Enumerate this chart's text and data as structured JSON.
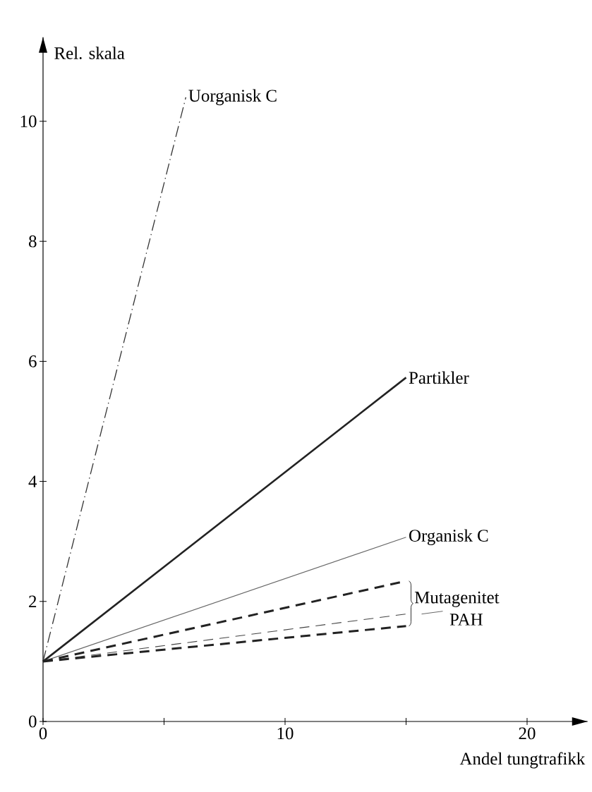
{
  "chart_data": {
    "type": "line",
    "xlabel": "Andel tungtrafikk",
    "ylabel": "Rel. skala",
    "xlim": [
      0,
      22.5
    ],
    "ylim": [
      0,
      11.4
    ],
    "xticks": [
      0,
      {
        "value": 5,
        "label": null
      },
      10,
      {
        "value": 15,
        "label": null
      },
      20
    ],
    "yticks": [
      0,
      2,
      4,
      6,
      8,
      10
    ],
    "grid": false,
    "legend": false,
    "marker": "none",
    "series": [
      {
        "name": "Uorganisk C",
        "color": "#333333",
        "line_style": "dashdot",
        "x": [
          0,
          5.9
        ],
        "values": [
          1,
          10.4
        ]
      },
      {
        "name": "Partikler",
        "color": "#222222",
        "line_style": "solid",
        "x": [
          0,
          15
        ],
        "values": [
          1,
          5.73
        ]
      },
      {
        "name": "Organisk C",
        "color": "#666666",
        "line_style": "solid",
        "x": [
          0,
          15
        ],
        "values": [
          1,
          3.07
        ]
      },
      {
        "name": "Mutagenitet",
        "color": "#222222",
        "line_style": "dashed",
        "x": [
          0,
          15
        ],
        "values": [
          1,
          2.34
        ]
      },
      {
        "name": "PAH",
        "color": "#444444",
        "line_style": "dashed",
        "x": [
          0,
          15
        ],
        "values": [
          1,
          1.79
        ]
      },
      {
        "color": "#222222",
        "line_style": "dashed",
        "x": [
          0,
          15
        ],
        "values": [
          1,
          1.59
        ]
      }
    ]
  }
}
